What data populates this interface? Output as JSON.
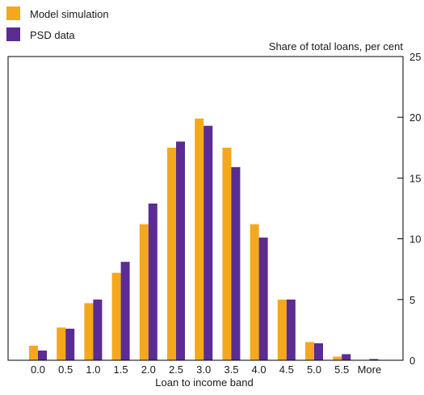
{
  "colors": {
    "model": "#F5A81C",
    "psd": "#5B2C91",
    "axis": "#000000"
  },
  "chart_data": {
    "type": "bar",
    "title": "",
    "xlabel": "Loan to income band",
    "ylabel": "Share of total loans, per cent",
    "ylim": [
      0,
      25
    ],
    "yticks": [
      0,
      5,
      10,
      15,
      20,
      25
    ],
    "y_axis_side": "right",
    "grid": false,
    "legend_position": "top-left",
    "categories": [
      "0.0",
      "0.5",
      "1.0",
      "1.5",
      "2.0",
      "2.5",
      "3.0",
      "3.5",
      "4.0",
      "4.5",
      "5.0",
      "5.5",
      "More"
    ],
    "series": [
      {
        "name": "Model simulation",
        "color_key": "model",
        "values": [
          1.2,
          2.7,
          4.7,
          7.2,
          11.2,
          17.5,
          19.9,
          17.5,
          11.2,
          5.0,
          1.5,
          0.3,
          0.0
        ]
      },
      {
        "name": "PSD data",
        "color_key": "psd",
        "values": [
          0.8,
          2.6,
          5.0,
          8.1,
          12.9,
          18.0,
          19.3,
          15.9,
          10.1,
          5.0,
          1.4,
          0.5,
          0.1
        ]
      }
    ]
  }
}
